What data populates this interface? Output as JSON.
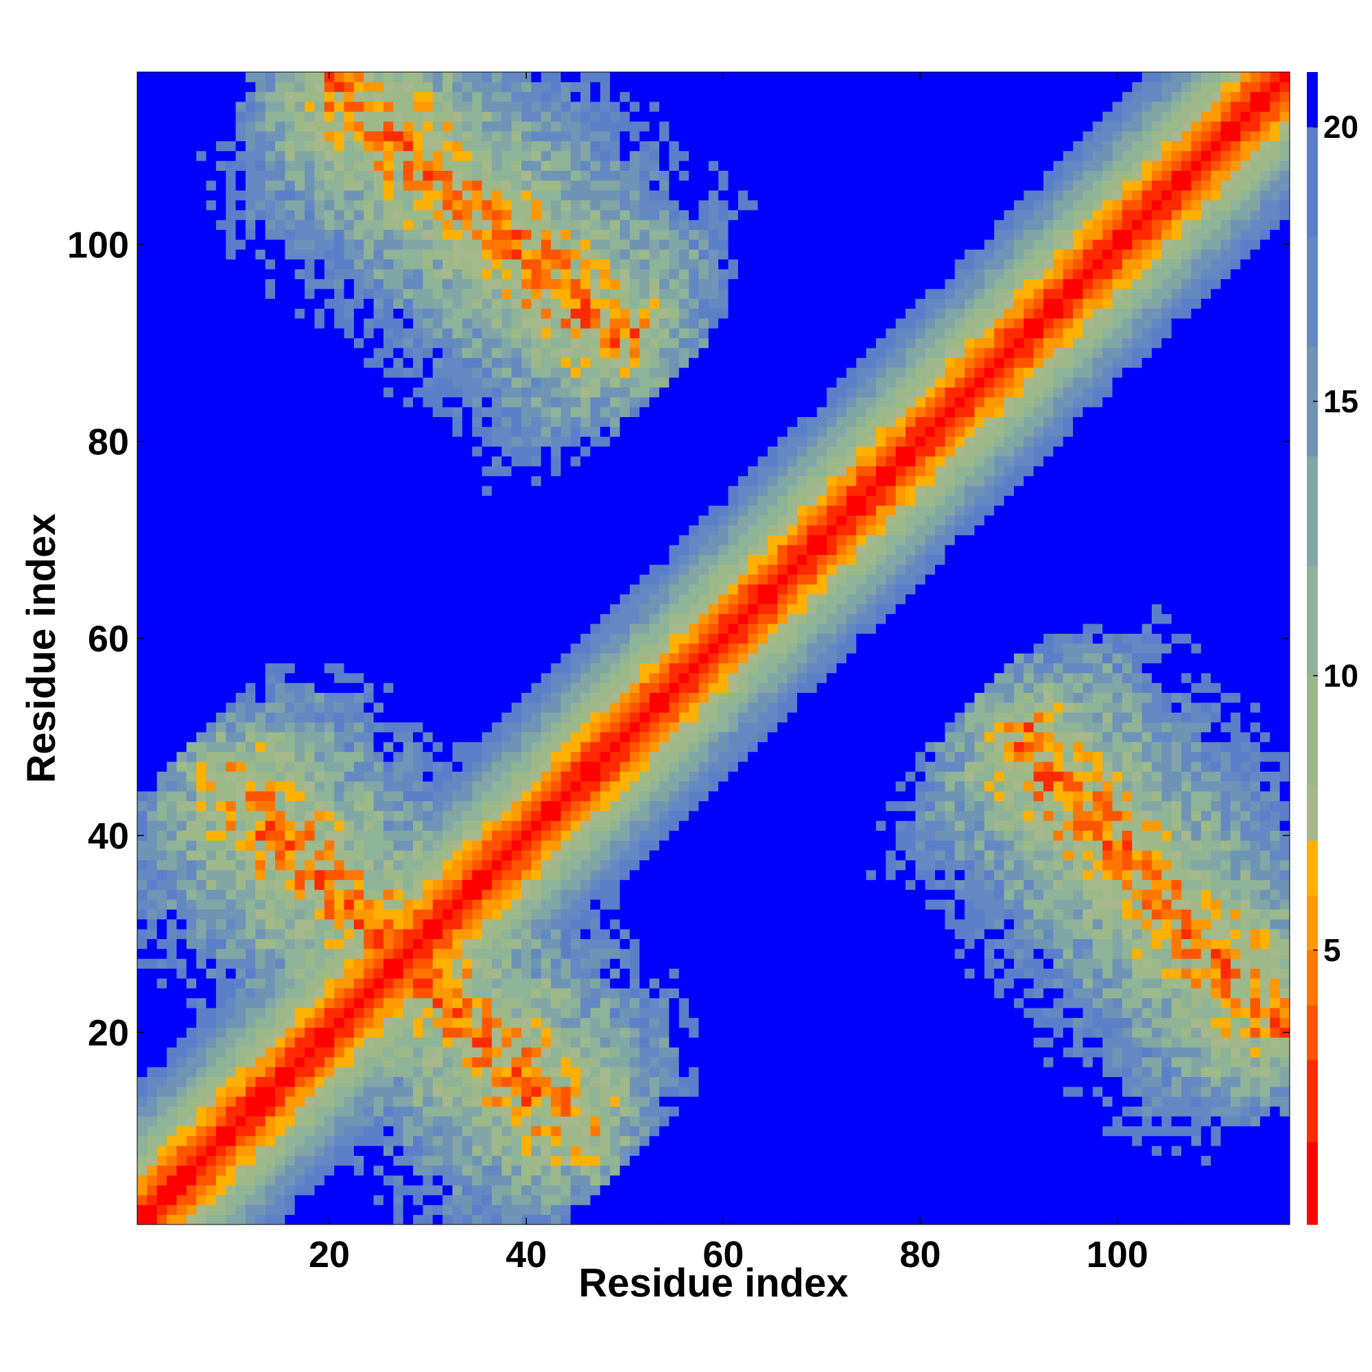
{
  "chart_data": {
    "type": "heatmap",
    "description_of_values": "",
    "title": "",
    "xlabel": "Residue index",
    "ylabel": "Residue index",
    "x_range": [
      1,
      117
    ],
    "y_range": [
      1,
      117
    ],
    "xticks": [
      20,
      40,
      60,
      80,
      100
    ],
    "yticks": [
      20,
      40,
      60,
      80,
      100
    ],
    "colorbar": {
      "ticks": [
        5,
        10,
        15,
        20
      ],
      "range": [
        0,
        21
      ],
      "levels": [
        {
          "upto": 1.5,
          "color": "#ff0000"
        },
        {
          "upto": 3,
          "color": "#ff2a00"
        },
        {
          "upto": 4,
          "color": "#ff5500"
        },
        {
          "upto": 5,
          "color": "#ff7700"
        },
        {
          "upto": 6,
          "color": "#ff9900"
        },
        {
          "upto": 7,
          "color": "#ffb000"
        },
        {
          "upto": 8,
          "color": "#a6b88c"
        },
        {
          "upto": 10,
          "color": "#9db98a"
        },
        {
          "upto": 12,
          "color": "#8fb397"
        },
        {
          "upto": 14,
          "color": "#82a6a6"
        },
        {
          "upto": 16,
          "color": "#6f94b6"
        },
        {
          "upto": 18,
          "color": "#6488c2"
        },
        {
          "upto": 20,
          "color": "#5b7fc8"
        },
        {
          "upto": 21,
          "color": "#0000ff"
        }
      ]
    },
    "features": [
      {
        "kind": "diagonal",
        "i_from": 1,
        "i_to": 117
      },
      {
        "kind": "contact_band",
        "i_from": 10,
        "i_to": 30,
        "j_from": 45,
        "j_to": 25
      },
      {
        "kind": "contact_band",
        "i_from": 20,
        "i_to": 50,
        "j_from": 117,
        "j_to": 90
      }
    ]
  }
}
